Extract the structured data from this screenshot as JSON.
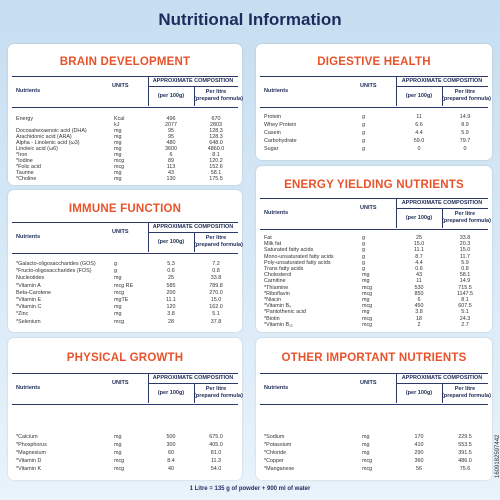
{
  "title": "Nutritional Information",
  "sections": [
    {
      "title": "BRAIN DEVELOPMENT",
      "columns": [
        "Nutrients",
        "UNITS",
        "APPROXIMATE COMPOSITION",
        "(per 100g)",
        "Per litre",
        "(prepared formula)"
      ],
      "rows": [
        [
          "Energy",
          "Kcal",
          "496",
          "670"
        ],
        [
          null,
          "kJ",
          "2077",
          "2803"
        ],
        [
          "Docosahexaenoic acid (DHA)",
          "mg",
          "95",
          "128.3"
        ],
        [
          "Arachidonic acid (ARA)",
          "mg",
          "95",
          "128.3"
        ],
        [
          "Alpha - Linolenic acid (ω3)",
          "mg",
          "480",
          "648.0"
        ],
        [
          "Linoleic acid (ω6)",
          "mg",
          "3600",
          "4860.0"
        ],
        [
          "*Iron",
          "mg",
          "6",
          "8.1"
        ],
        [
          "*Iodine",
          "mcg",
          "89",
          "120.2"
        ],
        [
          "*Folic acid",
          "mcg",
          "113",
          "152.6"
        ],
        [
          "Taurine",
          "mg",
          "43",
          "58.1"
        ],
        [
          "*Choline",
          "mg",
          "130",
          "175.5"
        ]
      ]
    },
    {
      "title": "IMMUNE FUNCTION",
      "columns": [
        "Nutrients",
        "UNITS",
        "APPROXIMATE COMPOSITION",
        "(per 100g)",
        "Per litre",
        "(prepared formula)"
      ],
      "rows": [
        [
          "*Galacto-oligosaccharides (GOS)",
          "g",
          "5.3",
          "7.2"
        ],
        [
          "*Fructo-oligosaccharides (FOS)",
          "g",
          "0.6",
          "0.8"
        ],
        [
          "Nucleotides",
          "mg",
          "25",
          "33.8"
        ],
        [
          "*Vitamin A",
          "mcg RE",
          "585",
          "789.8"
        ],
        [
          "Beta-Carotene",
          "mcg",
          "200",
          "270.0"
        ],
        [
          "*Vitamin E",
          "mgTE",
          "11.1",
          "15.0"
        ],
        [
          "*Vitamin C",
          "mg",
          "120",
          "162.0"
        ],
        [
          "*Zinc",
          "mg",
          "3.8",
          "5.1"
        ],
        [
          "*Selenium",
          "mcg",
          "28",
          "37.8"
        ]
      ]
    },
    {
      "title": "PHYSICAL GROWTH",
      "columns": [
        "Nutrients",
        "UNITS",
        "APPROXIMATE COMPOSITION",
        "(per 100g)",
        "Per litre",
        "(prepared formula)"
      ],
      "rows": [
        [
          "*Calcium",
          "mg",
          "500",
          "675.0"
        ],
        [
          "*Phosphorus",
          "mg",
          "300",
          "405.0"
        ],
        [
          "*Magnesium",
          "mg",
          "60",
          "81.0"
        ],
        [
          "*Vitamin D",
          "mcg",
          "8.4",
          "11.3"
        ],
        [
          "*Vitamin K",
          "mcg",
          "40",
          "54.0"
        ]
      ]
    },
    {
      "title": "DIGESTIVE HEALTH",
      "columns": [
        "Nutrients",
        "UNITS",
        "APPROXIMATE COMPOSITION",
        "(per 100g)",
        "Per litre",
        "(prepared formula)"
      ],
      "rows": [
        [
          "Protein",
          "g",
          "11",
          "14.9"
        ],
        [
          "Whey Protein",
          "g",
          "6.6",
          "8.9"
        ],
        [
          "Casein",
          "g",
          "4.4",
          "5.9"
        ],
        [
          "Carbohydrate",
          "g",
          "59.0",
          "79.7"
        ],
        [
          "Sugar",
          "g",
          "0",
          "0"
        ]
      ]
    },
    {
      "title": "ENERGY YIELDING NUTRIENTS",
      "columns": [
        "Nutrients",
        "UNITS",
        "APPROXIMATE COMPOSITION",
        "(per 100g)",
        "Per litre",
        "(prepared formula)"
      ],
      "rows": [
        [
          "Fat",
          "g",
          "25",
          "33.8"
        ],
        [
          "Milk fat",
          "g",
          "15.0",
          "20.3"
        ],
        [
          "Saturated fatty acids",
          "g",
          "11.1",
          "15.0"
        ],
        [
          "Mono-unsaturated fatty acids",
          "g",
          "8.7",
          "11.7"
        ],
        [
          "Poly-unsaturated fatty acids",
          "g",
          "4.4",
          "5.9"
        ],
        [
          "Trans fatty acids",
          "g",
          "0.6",
          "0.8"
        ],
        [
          "Cholesterol",
          "mg",
          "43",
          "58.1"
        ],
        [
          "Carnitine",
          "mg",
          "11",
          "14.9"
        ],
        [
          "*Thiamine",
          "mcg",
          "530",
          "715.5"
        ],
        [
          "*Riboflavin",
          "mcg",
          "850",
          "1147.5"
        ],
        [
          "*Niacin",
          "mg",
          "6",
          "8.1"
        ],
        [
          "*Vitamin B₆",
          "mcg",
          "450",
          "607.5"
        ],
        [
          "*Pantothenic acid",
          "mg",
          "3.8",
          "5.1"
        ],
        [
          "*Biotin",
          "mcg",
          "18",
          "24.3"
        ],
        [
          "*Vitamin B₁₂",
          "mcg",
          "2",
          "2.7"
        ]
      ]
    },
    {
      "title": "OTHER IMPORTANT NUTRIENTS",
      "columns": [
        "Nutrients",
        "UNITS",
        "APPROXIMATE COMPOSITION",
        "(per 100g)",
        "Per litre",
        "(prepared formula)"
      ],
      "rows": [
        [
          "*Sodium",
          "mg",
          "170",
          "229.5"
        ],
        [
          "*Potassium",
          "mg",
          "410",
          "553.5"
        ],
        [
          "*Chloride",
          "mg",
          "290",
          "391.5"
        ],
        [
          "*Copper",
          "mcg",
          "360",
          "486.0"
        ],
        [
          "*Manganese",
          "mcg",
          "56",
          "75.6"
        ]
      ]
    }
  ],
  "footer": "1 Litre = 135 g of powder + 900 ml of water",
  "code": "1609182597442"
}
